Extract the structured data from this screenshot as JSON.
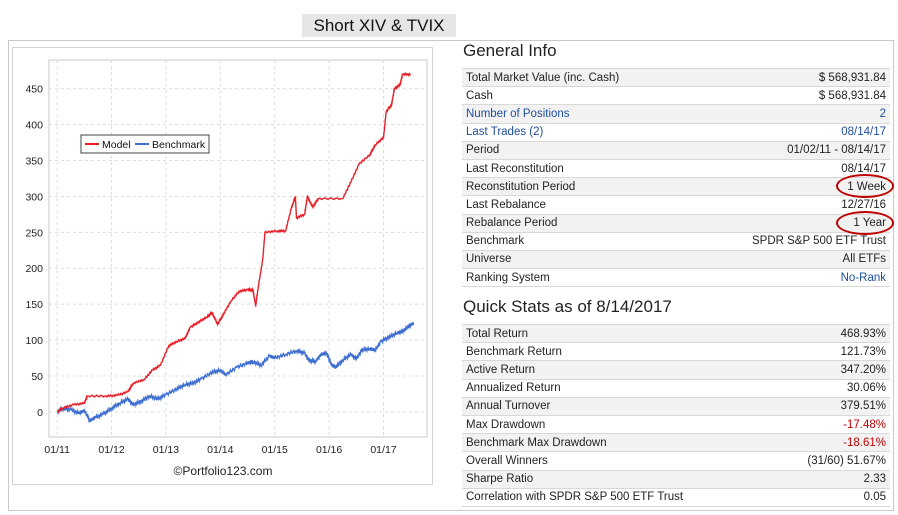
{
  "page_title": "Short XIV & TVIX",
  "general_info": {
    "heading": "General Info",
    "rows": [
      {
        "label": "Total Market Value (inc. Cash)",
        "value": "$ 568,931.84"
      },
      {
        "label": "Cash",
        "value": "$ 568,931.84"
      },
      {
        "label": "Number of Positions",
        "value": "2",
        "link": true
      },
      {
        "label": "Last Trades (2)",
        "value": "08/14/17",
        "link": true
      },
      {
        "label": "Period",
        "value": "01/02/11 - 08/14/17"
      },
      {
        "label": "Last Reconstitution",
        "value": "08/14/17"
      },
      {
        "label": "Reconstitution Period",
        "value": "1 Week",
        "circled": true
      },
      {
        "label": "Last Rebalance",
        "value": "12/27/16"
      },
      {
        "label": "Rebalance Period",
        "value": "1 Year",
        "circled": true
      },
      {
        "label": "Benchmark",
        "value": "SPDR S&P 500 ETF Trust"
      },
      {
        "label": "Universe",
        "value": "All ETFs"
      },
      {
        "label": "Ranking System",
        "value": "No-Rank",
        "value_link": true
      }
    ]
  },
  "quick_stats": {
    "heading": "Quick Stats as of 8/14/2017",
    "rows": [
      {
        "label": "Total Return",
        "value": "468.93%"
      },
      {
        "label": "Benchmark Return",
        "value": "121.73%"
      },
      {
        "label": "Active Return",
        "value": "347.20%"
      },
      {
        "label": "Annualized Return",
        "value": "30.06%"
      },
      {
        "label": "Annual Turnover",
        "value": "379.51%"
      },
      {
        "label": "Max Drawdown",
        "value": "-17.48%",
        "negative": true
      },
      {
        "label": "Benchmark Max Drawdown",
        "value": "-18.61%",
        "negative": true
      },
      {
        "label": "Overall Winners",
        "value": "(31/60) 51.67%"
      },
      {
        "label": "Sharpe Ratio",
        "value": "2.33"
      },
      {
        "label": "Correlation with SPDR S&P 500 ETF Trust",
        "value": "0.05"
      }
    ]
  },
  "chart_data": {
    "type": "line",
    "title": "",
    "xlabel": "",
    "ylabel": "",
    "ylim": [
      -35,
      490
    ],
    "xlim": [
      2010.85,
      2017.8
    ],
    "y_ticks": [
      0,
      50,
      100,
      150,
      200,
      250,
      300,
      350,
      400,
      450
    ],
    "x_ticks": [
      {
        "label": "01/11",
        "x": 2011.0
      },
      {
        "label": "01/12",
        "x": 2012.0
      },
      {
        "label": "01/13",
        "x": 2013.0
      },
      {
        "label": "01/14",
        "x": 2014.0
      },
      {
        "label": "01/15",
        "x": 2015.0
      },
      {
        "label": "01/16",
        "x": 2016.0
      },
      {
        "label": "01/17",
        "x": 2017.0
      }
    ],
    "grid": true,
    "legend_position": "top-left",
    "credit": "©Portfolio123.com",
    "series": [
      {
        "name": "Model",
        "color": "#e8202a",
        "points": [
          [
            2011.0,
            0
          ],
          [
            2011.1,
            5
          ],
          [
            2011.3,
            10
          ],
          [
            2011.5,
            12
          ],
          [
            2011.55,
            22
          ],
          [
            2011.9,
            22
          ],
          [
            2012.1,
            23
          ],
          [
            2012.3,
            28
          ],
          [
            2012.4,
            40
          ],
          [
            2012.6,
            45
          ],
          [
            2012.75,
            58
          ],
          [
            2012.9,
            65
          ],
          [
            2013.05,
            92
          ],
          [
            2013.2,
            98
          ],
          [
            2013.35,
            102
          ],
          [
            2013.45,
            118
          ],
          [
            2013.6,
            125
          ],
          [
            2013.75,
            132
          ],
          [
            2013.85,
            138
          ],
          [
            2013.95,
            122
          ],
          [
            2014.05,
            135
          ],
          [
            2014.2,
            155
          ],
          [
            2014.35,
            168
          ],
          [
            2014.5,
            170
          ],
          [
            2014.6,
            170
          ],
          [
            2014.65,
            148
          ],
          [
            2014.7,
            175
          ],
          [
            2014.78,
            212
          ],
          [
            2014.82,
            250
          ],
          [
            2015.05,
            252
          ],
          [
            2015.2,
            252
          ],
          [
            2015.3,
            282
          ],
          [
            2015.38,
            300
          ],
          [
            2015.4,
            270
          ],
          [
            2015.55,
            275
          ],
          [
            2015.6,
            300
          ],
          [
            2015.7,
            285
          ],
          [
            2015.8,
            297
          ],
          [
            2016.25,
            297
          ],
          [
            2016.4,
            320
          ],
          [
            2016.55,
            345
          ],
          [
            2016.75,
            358
          ],
          [
            2016.85,
            372
          ],
          [
            2017.0,
            382
          ],
          [
            2017.05,
            418
          ],
          [
            2017.15,
            428
          ],
          [
            2017.2,
            450
          ],
          [
            2017.3,
            455
          ],
          [
            2017.35,
            470
          ],
          [
            2017.5,
            470
          ]
        ]
      },
      {
        "name": "Benchmark",
        "color": "#3f6fd1",
        "points": [
          [
            2011.0,
            0
          ],
          [
            2011.1,
            5
          ],
          [
            2011.25,
            3
          ],
          [
            2011.4,
            -2
          ],
          [
            2011.5,
            2
          ],
          [
            2011.6,
            -12
          ],
          [
            2011.7,
            -8
          ],
          [
            2011.85,
            -3
          ],
          [
            2012.0,
            5
          ],
          [
            2012.15,
            12
          ],
          [
            2012.3,
            18
          ],
          [
            2012.4,
            10
          ],
          [
            2012.55,
            15
          ],
          [
            2012.7,
            22
          ],
          [
            2012.85,
            18
          ],
          [
            2013.0,
            24
          ],
          [
            2013.2,
            32
          ],
          [
            2013.35,
            38
          ],
          [
            2013.5,
            40
          ],
          [
            2013.65,
            46
          ],
          [
            2013.85,
            55
          ],
          [
            2014.0,
            58
          ],
          [
            2014.1,
            52
          ],
          [
            2014.3,
            62
          ],
          [
            2014.5,
            68
          ],
          [
            2014.6,
            70
          ],
          [
            2014.75,
            65
          ],
          [
            2014.9,
            78
          ],
          [
            2015.0,
            75
          ],
          [
            2015.2,
            80
          ],
          [
            2015.4,
            85
          ],
          [
            2015.55,
            82
          ],
          [
            2015.62,
            72
          ],
          [
            2015.75,
            70
          ],
          [
            2015.85,
            80
          ],
          [
            2015.95,
            82
          ],
          [
            2016.05,
            65
          ],
          [
            2016.12,
            62
          ],
          [
            2016.25,
            72
          ],
          [
            2016.4,
            80
          ],
          [
            2016.5,
            74
          ],
          [
            2016.6,
            86
          ],
          [
            2016.75,
            88
          ],
          [
            2016.85,
            86
          ],
          [
            2016.95,
            98
          ],
          [
            2017.1,
            104
          ],
          [
            2017.25,
            110
          ],
          [
            2017.35,
            112
          ],
          [
            2017.45,
            118
          ],
          [
            2017.52,
            122
          ],
          [
            2017.55,
            123
          ]
        ]
      }
    ]
  }
}
